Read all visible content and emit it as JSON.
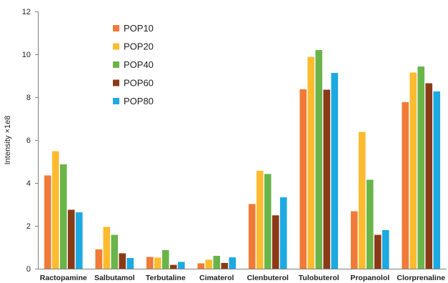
{
  "chart_data": {
    "type": "bar",
    "title": "",
    "xlabel": "",
    "ylabel": "Intensity ×1e8",
    "ylim": [
      0,
      12
    ],
    "yticks": [
      "0",
      "2",
      "4",
      "6",
      "8",
      "10",
      "12"
    ],
    "grid": false,
    "legend_position": "top-left",
    "categories": [
      "Ractopamine",
      "Salbutamol",
      "Terbutaline",
      "Cimaterol",
      "Clenbuterol",
      "Tulobuterol",
      "Propanolol",
      "Clorprenaline"
    ],
    "series": [
      {
        "name": "POP10",
        "color": "#F07A38",
        "values": [
          4.35,
          0.9,
          0.55,
          0.25,
          3.02,
          8.37,
          2.68,
          7.77
        ]
      },
      {
        "name": "POP20",
        "color": "#FDBB2F",
        "values": [
          5.48,
          1.95,
          0.52,
          0.42,
          4.57,
          9.88,
          6.38,
          9.15
        ]
      },
      {
        "name": "POP40",
        "color": "#6AB54A",
        "values": [
          4.87,
          1.58,
          0.87,
          0.6,
          4.42,
          10.2,
          4.15,
          9.43
        ]
      },
      {
        "name": "POP60",
        "color": "#8B3A17",
        "values": [
          2.75,
          0.72,
          0.18,
          0.27,
          2.49,
          8.35,
          1.58,
          8.65
        ]
      },
      {
        "name": "POP80",
        "color": "#1DA9E1",
        "values": [
          2.63,
          0.5,
          0.32,
          0.53,
          3.33,
          9.13,
          1.8,
          8.27
        ]
      }
    ]
  }
}
